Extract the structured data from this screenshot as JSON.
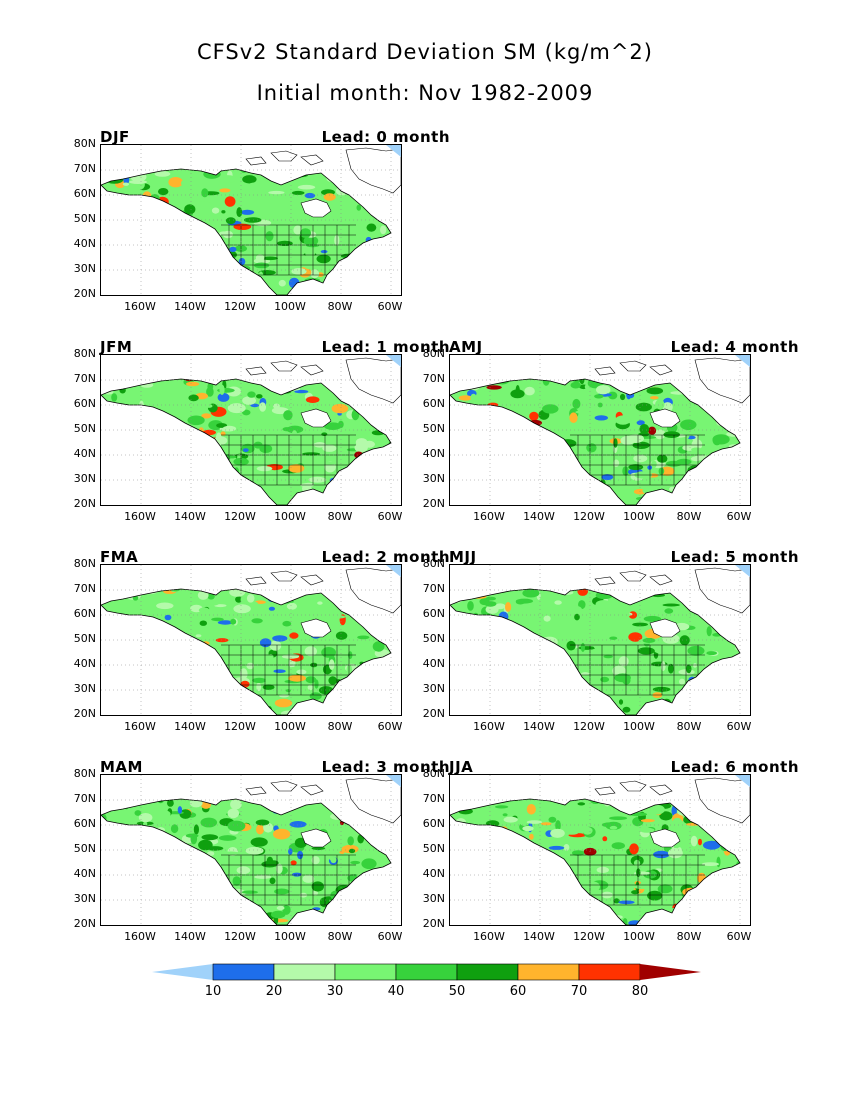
{
  "title": "CFSv2 Standard Deviation SM (kg/m^2)",
  "subtitle": "Initial month: Nov 1982-2009",
  "y_ticks": [
    "80N",
    "70N",
    "60N",
    "50N",
    "40N",
    "30N",
    "20N"
  ],
  "x_ticks": [
    "160W",
    "140W",
    "120W",
    "100W",
    "80W",
    "60W"
  ],
  "panels": [
    {
      "season": "DJF",
      "lead": "Lead: 0 month"
    },
    {
      "season": "JFM",
      "lead": "Lead: 1 month"
    },
    {
      "season": "AMJ",
      "lead": "Lead: 4 month"
    },
    {
      "season": "FMA",
      "lead": "Lead: 2 month"
    },
    {
      "season": "MJJ",
      "lead": "Lead: 5 month"
    },
    {
      "season": "MAM",
      "lead": "Lead: 3 month"
    },
    {
      "season": "JJA",
      "lead": "Lead: 6 month"
    }
  ],
  "colorbar": {
    "labels": [
      "10",
      "20",
      "30",
      "40",
      "50",
      "60",
      "70",
      "80"
    ],
    "colors": [
      "#a0d2fa",
      "#1e6eeb",
      "#b4faaa",
      "#78f573",
      "#37d23c",
      "#0fa00f",
      "#ffb42d",
      "#ff3200",
      "#a00000"
    ]
  },
  "map_colors": {
    "ocean": "#ffffff",
    "land_base": "#78f573",
    "greenland_ice": "#ffffff",
    "border": "#000000"
  }
}
